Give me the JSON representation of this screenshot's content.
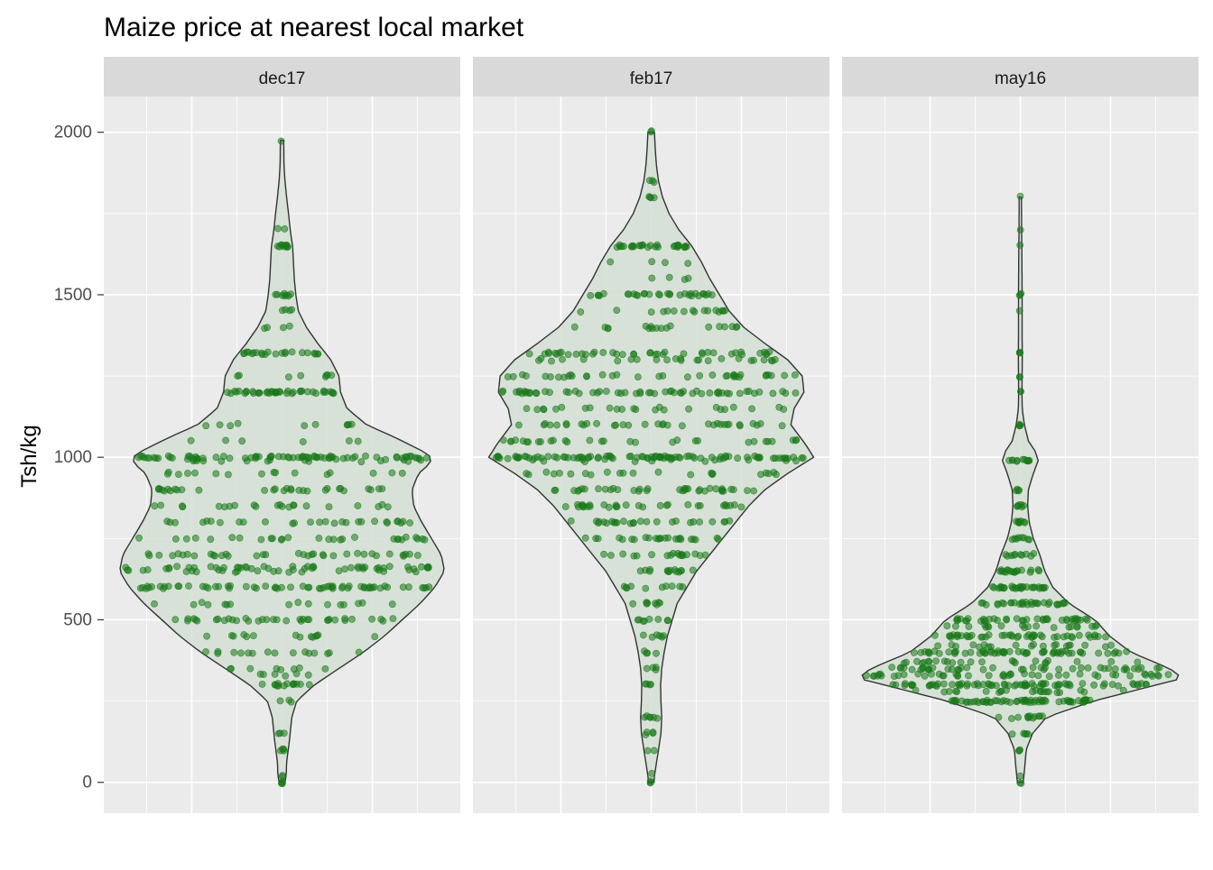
{
  "chart_data": {
    "type": "violin",
    "title": "Maize price at nearest local market",
    "xlabel": "",
    "ylabel": "Tsh/kg",
    "ylim": [
      -95,
      2110
    ],
    "y_ticks": [
      0,
      500,
      1000,
      1500,
      2000
    ],
    "y_tick_labels": [
      "0",
      "500",
      "1000",
      "1500",
      "2000"
    ],
    "grid": true,
    "legend": "none",
    "colors": {
      "panel_bg": "#ebebeb",
      "strip_bg": "#d9d9d9",
      "grid": "#ffffff",
      "violin_fill": "#d3dfd3",
      "violin_stroke": "#333333",
      "point": "#1a7a1a"
    },
    "facets": [
      {
        "label": "dec17",
        "n_points": 560,
        "ymin": 0,
        "ymax": 1975,
        "density": [
          [
            0,
            0.018
          ],
          [
            25,
            0.026
          ],
          [
            60,
            0.028
          ],
          [
            100,
            0.038
          ],
          [
            125,
            0.045
          ],
          [
            150,
            0.05
          ],
          [
            200,
            0.06
          ],
          [
            250,
            0.09
          ],
          [
            300,
            0.2
          ],
          [
            350,
            0.35
          ],
          [
            400,
            0.5
          ],
          [
            450,
            0.63
          ],
          [
            500,
            0.74
          ],
          [
            550,
            0.85
          ],
          [
            600,
            0.94
          ],
          [
            650,
            1.0
          ],
          [
            700,
            0.98
          ],
          [
            750,
            0.92
          ],
          [
            800,
            0.86
          ],
          [
            850,
            0.81
          ],
          [
            900,
            0.8
          ],
          [
            950,
            0.84
          ],
          [
            980,
            0.91
          ],
          [
            1000,
            0.92
          ],
          [
            1020,
            0.86
          ],
          [
            1060,
            0.7
          ],
          [
            1100,
            0.52
          ],
          [
            1150,
            0.4
          ],
          [
            1200,
            0.36
          ],
          [
            1250,
            0.35
          ],
          [
            1300,
            0.3
          ],
          [
            1350,
            0.22
          ],
          [
            1400,
            0.15
          ],
          [
            1450,
            0.1
          ],
          [
            1500,
            0.085
          ],
          [
            1550,
            0.075
          ],
          [
            1600,
            0.07
          ],
          [
            1650,
            0.065
          ],
          [
            1700,
            0.05
          ],
          [
            1750,
            0.04
          ],
          [
            1800,
            0.028
          ],
          [
            1850,
            0.018
          ],
          [
            1900,
            0.012
          ],
          [
            1975,
            0.01
          ]
        ],
        "levels": [
          [
            0,
            4
          ],
          [
            20,
            2
          ],
          [
            100,
            4
          ],
          [
            150,
            3
          ],
          [
            250,
            3
          ],
          [
            300,
            14
          ],
          [
            330,
            6
          ],
          [
            350,
            8
          ],
          [
            400,
            16
          ],
          [
            450,
            14
          ],
          [
            500,
            36
          ],
          [
            550,
            16
          ],
          [
            600,
            62
          ],
          [
            650,
            22
          ],
          [
            660,
            42
          ],
          [
            700,
            36
          ],
          [
            750,
            28
          ],
          [
            800,
            28
          ],
          [
            850,
            22
          ],
          [
            900,
            30
          ],
          [
            950,
            16
          ],
          [
            990,
            18
          ],
          [
            1000,
            72
          ],
          [
            1050,
            6
          ],
          [
            1100,
            10
          ],
          [
            1200,
            42
          ],
          [
            1250,
            8
          ],
          [
            1320,
            22
          ],
          [
            1400,
            4
          ],
          [
            1450,
            4
          ],
          [
            1500,
            8
          ],
          [
            1650,
            10
          ],
          [
            1700,
            2
          ],
          [
            1975,
            1
          ]
        ]
      },
      {
        "label": "feb17",
        "n_points": 598,
        "ymin": 0,
        "ymax": 2000,
        "density": [
          [
            0,
            0.018
          ],
          [
            20,
            0.02
          ],
          [
            100,
            0.045
          ],
          [
            150,
            0.06
          ],
          [
            200,
            0.065
          ],
          [
            250,
            0.06
          ],
          [
            300,
            0.058
          ],
          [
            350,
            0.065
          ],
          [
            400,
            0.08
          ],
          [
            450,
            0.1
          ],
          [
            500,
            0.13
          ],
          [
            550,
            0.16
          ],
          [
            600,
            0.22
          ],
          [
            650,
            0.28
          ],
          [
            700,
            0.36
          ],
          [
            750,
            0.44
          ],
          [
            800,
            0.52
          ],
          [
            850,
            0.6
          ],
          [
            900,
            0.7
          ],
          [
            950,
            0.84
          ],
          [
            1000,
            1.0
          ],
          [
            1040,
            0.95
          ],
          [
            1100,
            0.86
          ],
          [
            1150,
            0.88
          ],
          [
            1200,
            0.94
          ],
          [
            1250,
            0.93
          ],
          [
            1300,
            0.84
          ],
          [
            1350,
            0.7
          ],
          [
            1400,
            0.57
          ],
          [
            1450,
            0.48
          ],
          [
            1500,
            0.42
          ],
          [
            1550,
            0.36
          ],
          [
            1600,
            0.31
          ],
          [
            1650,
            0.25
          ],
          [
            1700,
            0.17
          ],
          [
            1750,
            0.11
          ],
          [
            1800,
            0.07
          ],
          [
            1850,
            0.045
          ],
          [
            1900,
            0.032
          ],
          [
            1950,
            0.025
          ],
          [
            2000,
            0.02
          ]
        ],
        "levels": [
          [
            0,
            3
          ],
          [
            25,
            1
          ],
          [
            100,
            2
          ],
          [
            150,
            4
          ],
          [
            200,
            6
          ],
          [
            300,
            4
          ],
          [
            350,
            4
          ],
          [
            400,
            4
          ],
          [
            450,
            6
          ],
          [
            500,
            8
          ],
          [
            550,
            8
          ],
          [
            600,
            10
          ],
          [
            650,
            14
          ],
          [
            700,
            18
          ],
          [
            750,
            24
          ],
          [
            800,
            26
          ],
          [
            850,
            30
          ],
          [
            900,
            36
          ],
          [
            950,
            22
          ],
          [
            990,
            14
          ],
          [
            1000,
            90
          ],
          [
            1050,
            30
          ],
          [
            1100,
            34
          ],
          [
            1150,
            24
          ],
          [
            1200,
            58
          ],
          [
            1250,
            36
          ],
          [
            1300,
            24
          ],
          [
            1320,
            40
          ],
          [
            1400,
            18
          ],
          [
            1450,
            16
          ],
          [
            1500,
            30
          ],
          [
            1550,
            4
          ],
          [
            1600,
            4
          ],
          [
            1650,
            28
          ],
          [
            1800,
            4
          ],
          [
            1850,
            3
          ],
          [
            2000,
            2
          ]
        ]
      },
      {
        "label": "may16",
        "n_points": 636,
        "ymin": 0,
        "ymax": 1800,
        "density": [
          [
            0,
            0.018
          ],
          [
            50,
            0.028
          ],
          [
            100,
            0.036
          ],
          [
            150,
            0.075
          ],
          [
            200,
            0.16
          ],
          [
            250,
            0.45
          ],
          [
            300,
            0.84
          ],
          [
            320,
            1.0
          ],
          [
            350,
            0.92
          ],
          [
            400,
            0.68
          ],
          [
            450,
            0.55
          ],
          [
            500,
            0.46
          ],
          [
            550,
            0.3
          ],
          [
            600,
            0.2
          ],
          [
            650,
            0.15
          ],
          [
            700,
            0.12
          ],
          [
            750,
            0.08
          ],
          [
            800,
            0.055
          ],
          [
            850,
            0.045
          ],
          [
            900,
            0.05
          ],
          [
            950,
            0.08
          ],
          [
            990,
            0.11
          ],
          [
            1020,
            0.09
          ],
          [
            1050,
            0.05
          ],
          [
            1100,
            0.025
          ],
          [
            1150,
            0.012
          ],
          [
            1200,
            0.01
          ],
          [
            1300,
            0.012
          ],
          [
            1400,
            0.011
          ],
          [
            1500,
            0.011
          ],
          [
            1600,
            0.01
          ],
          [
            1700,
            0.008
          ],
          [
            1800,
            0.007
          ]
        ],
        "levels": [
          [
            0,
            2
          ],
          [
            20,
            1
          ],
          [
            100,
            3
          ],
          [
            150,
            5
          ],
          [
            200,
            12
          ],
          [
            250,
            62
          ],
          [
            280,
            22
          ],
          [
            300,
            72
          ],
          [
            330,
            46
          ],
          [
            350,
            42
          ],
          [
            370,
            24
          ],
          [
            400,
            56
          ],
          [
            420,
            20
          ],
          [
            450,
            46
          ],
          [
            480,
            20
          ],
          [
            500,
            38
          ],
          [
            550,
            30
          ],
          [
            600,
            28
          ],
          [
            650,
            18
          ],
          [
            700,
            10
          ],
          [
            750,
            8
          ],
          [
            800,
            8
          ],
          [
            850,
            6
          ],
          [
            900,
            4
          ],
          [
            990,
            12
          ],
          [
            1100,
            4
          ],
          [
            1200,
            2
          ],
          [
            1250,
            2
          ],
          [
            1320,
            3
          ],
          [
            1450,
            1
          ],
          [
            1500,
            3
          ],
          [
            1650,
            1
          ],
          [
            1700,
            1
          ],
          [
            1800,
            1
          ]
        ]
      }
    ]
  }
}
